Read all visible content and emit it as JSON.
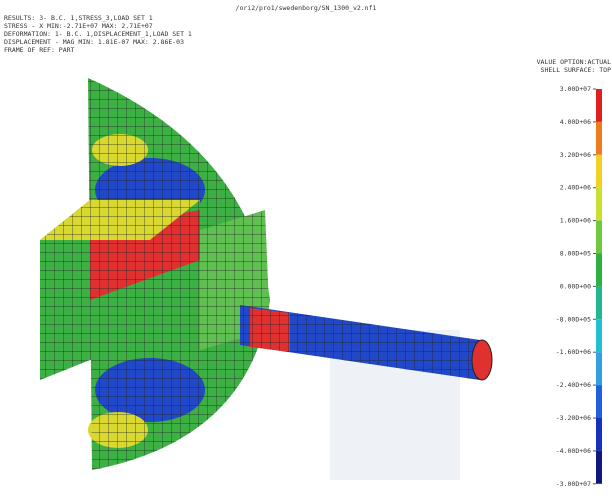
{
  "header": {
    "file_path": "/ori2/pro1/swedenborg/SN_1300_v2.nf1",
    "info_lines": [
      "RESULTS: 3- B.C. 1,STRESS_3,LOAD SET 1",
      "STRESS - X MIN:-2.71E+07 MAX: 2.71E+07",
      "DEFORMATION: 1- B.C. 1,DISPLACEMENT_1,LOAD SET 1",
      "DISPLACEMENT - MAG MIN: 1.81E-07 MAX: 2.86E-03",
      "FRAME OF REF: PART"
    ],
    "options": [
      "VALUE OPTION:ACTUAL",
      "SHELL SURFACE: TOP"
    ]
  },
  "legend": {
    "labels": [
      "3.00D+07",
      "4.00D+06",
      "3.20D+06",
      "2.40D+06",
      "1.60D+06",
      "8.00D+05",
      "0.00D+00",
      "-8.00D+05",
      "-1.60D+06",
      "-2.40D+06",
      "-3.20D+06",
      "-4.00D+06",
      "-3.00D+07"
    ]
  }
}
